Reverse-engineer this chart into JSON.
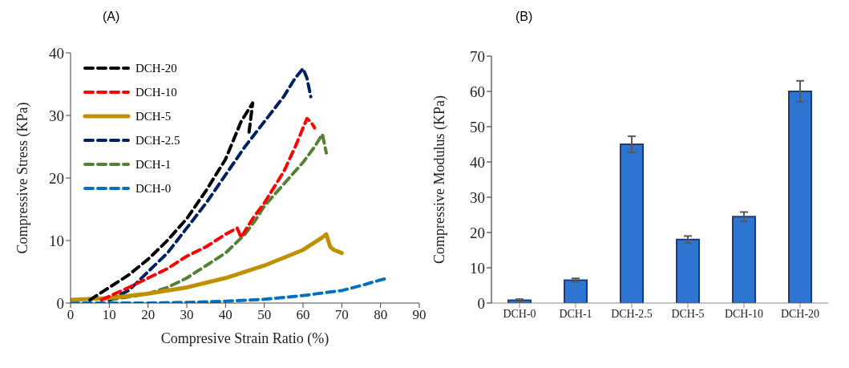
{
  "chart_data": [
    {
      "type": "line",
      "title": "(A)",
      "xlabel": "Compresive Strain Ratio (%)",
      "ylabel": "Compressive Stress (KPa)",
      "xlim": [
        0,
        90
      ],
      "xticks": [
        0,
        10,
        20,
        30,
        40,
        50,
        60,
        70,
        80,
        90
      ],
      "ylim": [
        0,
        40
      ],
      "yticks": [
        0,
        10,
        20,
        30,
        40
      ],
      "grid": false,
      "legend": "top left",
      "marker": "none",
      "series": [
        {
          "name": "DCH-20",
          "color": "#000000",
          "line_style": "dashed",
          "x": [
            5,
            10,
            15,
            20,
            25,
            30,
            35,
            40,
            44,
            47,
            46
          ],
          "values": [
            0.5,
            2.5,
            4.5,
            7,
            10,
            13.5,
            18,
            23,
            29,
            32,
            27
          ]
        },
        {
          "name": "DCH-10",
          "color": "#ff0000",
          "line_style": "dashed",
          "x": [
            8,
            15,
            20,
            25,
            30,
            35,
            40,
            43,
            44,
            47,
            50,
            55,
            58,
            61,
            62,
            63
          ],
          "values": [
            0.5,
            2.5,
            4,
            5.5,
            7.5,
            9,
            11,
            12,
            10.5,
            13.5,
            16,
            21,
            25,
            29.5,
            29,
            28
          ]
        },
        {
          "name": "DCH-5",
          "color": "#bf9000",
          "line_style": "solid",
          "x": [
            0,
            10,
            20,
            30,
            40,
            50,
            60,
            65,
            66,
            67,
            68,
            70
          ],
          "values": [
            0.5,
            0.8,
            1.5,
            2.5,
            4,
            6,
            8.5,
            10.5,
            11,
            9,
            8.5,
            8
          ]
        },
        {
          "name": "DCH-2.5",
          "color": "#002060",
          "line_style": "dashed",
          "x": [
            10,
            15,
            20,
            25,
            30,
            35,
            40,
            45,
            50,
            55,
            58,
            60,
            61,
            62
          ],
          "values": [
            0.5,
            2,
            5,
            8,
            12,
            16,
            20.5,
            25,
            29,
            33,
            36,
            37.5,
            36,
            33
          ]
        },
        {
          "name": "DCH-1",
          "color": "#538135",
          "line_style": "dashed",
          "x": [
            10,
            15,
            20,
            25,
            30,
            35,
            40,
            45,
            48,
            50,
            55,
            60,
            63,
            65,
            66
          ],
          "values": [
            0.5,
            1,
            1.5,
            2.5,
            4,
            6,
            8,
            11,
            13.5,
            15.5,
            19,
            22.5,
            25,
            27,
            24
          ]
        },
        {
          "name": "DCH-0",
          "color": "#0070c0",
          "line_style": "dashed",
          "x": [
            0,
            20,
            30,
            40,
            50,
            60,
            70,
            75,
            80,
            82
          ],
          "values": [
            0,
            0,
            0.1,
            0.3,
            0.6,
            1.2,
            2,
            2.8,
            3.7,
            4
          ]
        }
      ]
    },
    {
      "type": "bar",
      "title": "(B)",
      "ylabel": "Compressive Modulus (KPa)",
      "categories": [
        "DCH-0",
        "DCH-1",
        "DCH-2.5",
        "DCH-5",
        "DCH-10",
        "DCH-20"
      ],
      "values": [
        0.8,
        6.5,
        45,
        18,
        24.5,
        60
      ],
      "errors": [
        0.3,
        0.5,
        2.3,
        1,
        1.3,
        3
      ],
      "color": "#2e75d1",
      "ylim": [
        0,
        70
      ],
      "yticks": [
        0,
        10,
        20,
        30,
        40,
        50,
        60,
        70
      ],
      "grid": false,
      "legend": false
    }
  ]
}
